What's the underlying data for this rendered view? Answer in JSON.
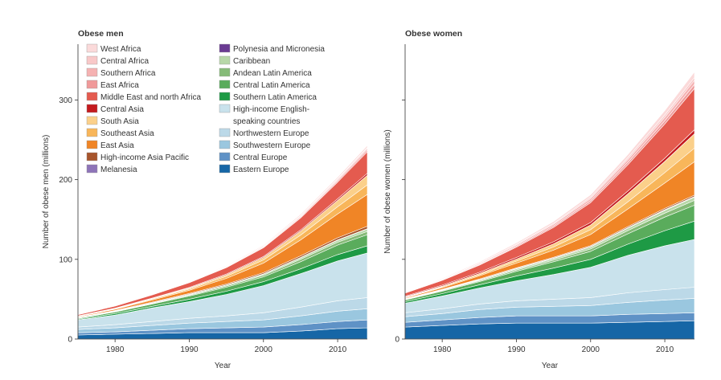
{
  "figure": {
    "legend": [
      {
        "label": "West Africa",
        "color": "#fbdada"
      },
      {
        "label": "Central Africa",
        "color": "#f8c8c8"
      },
      {
        "label": "Southern Africa",
        "color": "#f5b2b2"
      },
      {
        "label": "East Africa",
        "color": "#f09a9a"
      },
      {
        "label": "Middle East and north Africa",
        "color": "#e45b4f"
      },
      {
        "label": "Central Asia",
        "color": "#c41a1e"
      },
      {
        "label": "South Asia",
        "color": "#fbd08a"
      },
      {
        "label": "Southeast Asia",
        "color": "#f8b65a"
      },
      {
        "label": "East Asia",
        "color": "#f08526"
      },
      {
        "label": "High-income Asia Pacific",
        "color": "#a7552c"
      },
      {
        "label": "Melanesia",
        "color": "#8e74b8"
      },
      {
        "label": "Polynesia and Micronesia",
        "color": "#6a3b92"
      },
      {
        "label": "Caribbean",
        "color": "#b7d7a8"
      },
      {
        "label": "Andean Latin America",
        "color": "#86bb78"
      },
      {
        "label": "Central Latin America",
        "color": "#5aac5c"
      },
      {
        "label": "Southern Latin America",
        "color": "#1e9a45"
      },
      {
        "label": "High-income English-speaking countries",
        "label_lines": [
          "High-income English-",
          "speaking countries"
        ],
        "color": "#c9e2ec"
      },
      {
        "label": "Northwestern Europe",
        "color": "#bcd9e8"
      },
      {
        "label": "Southwestern Europe",
        "color": "#9ac7df"
      },
      {
        "label": "Central Europe",
        "color": "#5f92c6"
      },
      {
        "label": "Eastern Europe",
        "color": "#1666a6"
      }
    ]
  },
  "chart_data": [
    {
      "type": "area",
      "title": "Obese men",
      "xlabel": "Year",
      "ylabel": "Number of obese men (millions)",
      "x": [
        1975,
        1980,
        1985,
        1990,
        1995,
        2000,
        2005,
        2010,
        2014
      ],
      "xticks": [
        1980,
        1990,
        2000,
        2010
      ],
      "yticks": [
        0,
        100,
        200,
        300
      ],
      "ylim": [
        0,
        370
      ],
      "stacked": true,
      "series": [
        {
          "name": "Eastern Europe",
          "values": [
            5,
            6,
            7,
            8,
            8,
            8,
            10,
            13,
            14
          ]
        },
        {
          "name": "Central Europe",
          "values": [
            3,
            3,
            4,
            5,
            6,
            7,
            8,
            9,
            10
          ]
        },
        {
          "name": "Southwestern Europe",
          "values": [
            4,
            5,
            6,
            7,
            8,
            9,
            11,
            13,
            14
          ]
        },
        {
          "name": "Northwestern Europe",
          "values": [
            3,
            4,
            5,
            6,
            7,
            9,
            11,
            13,
            14
          ]
        },
        {
          "name": "High-income English-speaking countries",
          "values": [
            9,
            12,
            17,
            21,
            27,
            34,
            42,
            50,
            56
          ]
        },
        {
          "name": "Southern Latin America",
          "values": [
            1,
            2,
            2,
            3,
            4,
            5,
            6,
            8,
            9
          ]
        },
        {
          "name": "Central Latin America",
          "values": [
            1,
            2,
            3,
            4,
            5,
            6,
            9,
            12,
            14
          ]
        },
        {
          "name": "Andean Latin America",
          "values": [
            0.3,
            0.5,
            0.7,
            1,
            1.5,
            2,
            3,
            3.5,
            4
          ]
        },
        {
          "name": "Caribbean",
          "values": [
            0.3,
            0.5,
            0.7,
            1,
            1.2,
            1.5,
            2,
            2.5,
            3
          ]
        },
        {
          "name": "Polynesia and Micronesia",
          "values": [
            0.1,
            0.1,
            0.1,
            0.1,
            0.1,
            0.1,
            0.1,
            0.2,
            0.2
          ]
        },
        {
          "name": "Melanesia",
          "values": [
            0.1,
            0.1,
            0.1,
            0.1,
            0.1,
            0.2,
            0.2,
            0.3,
            0.3
          ]
        },
        {
          "name": "High-income Asia Pacific",
          "values": [
            0.5,
            0.7,
            0.8,
            1,
            1.2,
            1.5,
            2,
            2.5,
            3
          ]
        },
        {
          "name": "East Asia",
          "values": [
            0.8,
            1.5,
            2.5,
            4,
            7,
            12,
            20,
            30,
            40
          ]
        },
        {
          "name": "Southeast Asia",
          "values": [
            0.3,
            0.5,
            1,
            1.5,
            2.5,
            4,
            6,
            9,
            12
          ]
        },
        {
          "name": "South Asia",
          "values": [
            0.3,
            0.5,
            0.8,
            1.2,
            2,
            3,
            5,
            8,
            12
          ]
        },
        {
          "name": "Central Asia",
          "values": [
            0.3,
            0.4,
            0.6,
            0.8,
            1,
            1.2,
            1.5,
            2,
            2.5
          ]
        },
        {
          "name": "Middle East and north Africa",
          "values": [
            1.5,
            2.5,
            4,
            6,
            8,
            11,
            15,
            21,
            27
          ]
        },
        {
          "name": "East Africa",
          "values": [
            0.1,
            0.2,
            0.3,
            0.4,
            0.6,
            0.8,
            1.2,
            1.7,
            2.2
          ]
        },
        {
          "name": "Southern Africa",
          "values": [
            0.2,
            0.3,
            0.4,
            0.6,
            0.8,
            1,
            1.3,
            1.6,
            2
          ]
        },
        {
          "name": "Central Africa",
          "values": [
            0.1,
            0.1,
            0.2,
            0.3,
            0.4,
            0.5,
            0.7,
            0.9,
            1.2
          ]
        },
        {
          "name": "West Africa",
          "values": [
            0.2,
            0.3,
            0.4,
            0.6,
            0.8,
            1.1,
            1.5,
            2,
            2.6
          ]
        }
      ]
    },
    {
      "type": "area",
      "title": "Obese women",
      "xlabel": "Year",
      "ylabel": "Number of obese women (millions)",
      "x": [
        1975,
        1980,
        1985,
        1990,
        1995,
        2000,
        2005,
        2010,
        2014
      ],
      "xticks": [
        1980,
        1990,
        2000,
        2010
      ],
      "yticks": [
        0,
        100,
        200,
        300
      ],
      "ylim": [
        0,
        370
      ],
      "stacked": true,
      "series": [
        {
          "name": "Eastern Europe",
          "values": [
            15,
            17,
            19,
            20,
            20,
            20,
            21,
            22,
            23
          ]
        },
        {
          "name": "Central Europe",
          "values": [
            6,
            7,
            8,
            9,
            9,
            9,
            10,
            10,
            10
          ]
        },
        {
          "name": "Southwestern Europe",
          "values": [
            7,
            8,
            10,
            11,
            12,
            13,
            15,
            17,
            18
          ]
        },
        {
          "name": "Northwestern Europe",
          "values": [
            5,
            6,
            7,
            8,
            9,
            10,
            12,
            13,
            14
          ]
        },
        {
          "name": "High-income English-speaking countries",
          "values": [
            12,
            16,
            20,
            25,
            31,
            38,
            47,
            55,
            60
          ]
        },
        {
          "name": "Southern Latin America",
          "values": [
            2,
            3,
            4,
            6,
            8,
            10,
            14,
            19,
            23
          ]
        },
        {
          "name": "Central Latin America",
          "values": [
            2,
            3,
            4,
            6,
            8,
            10,
            13,
            17,
            20
          ]
        },
        {
          "name": "Andean Latin America",
          "values": [
            0.5,
            0.8,
            1.2,
            1.6,
            2,
            3,
            4,
            5,
            6
          ]
        },
        {
          "name": "Caribbean",
          "values": [
            0.5,
            0.8,
            1,
            1.5,
            2,
            2.5,
            3,
            3.5,
            4
          ]
        },
        {
          "name": "Polynesia and Micronesia",
          "values": [
            0.1,
            0.1,
            0.1,
            0.2,
            0.2,
            0.2,
            0.2,
            0.3,
            0.3
          ]
        },
        {
          "name": "Melanesia",
          "values": [
            0.1,
            0.1,
            0.2,
            0.2,
            0.3,
            0.3,
            0.4,
            0.5,
            0.5
          ]
        },
        {
          "name": "High-income Asia Pacific",
          "values": [
            0.5,
            0.6,
            0.7,
            0.8,
            1,
            1.2,
            1.4,
            1.6,
            1.8
          ]
        },
        {
          "name": "East Asia",
          "values": [
            1,
            2,
            4,
            6,
            9,
            14,
            22,
            32,
            42
          ]
        },
        {
          "name": "Southeast Asia",
          "values": [
            0.5,
            1,
            1.5,
            2.5,
            4,
            6,
            9,
            13,
            17
          ]
        },
        {
          "name": "South Asia",
          "values": [
            0.5,
            1,
            1.5,
            2.5,
            4,
            6,
            10,
            14,
            18
          ]
        },
        {
          "name": "Central Asia",
          "values": [
            1,
            1.2,
            1.5,
            2,
            2.5,
            3,
            3.5,
            4,
            5
          ]
        },
        {
          "name": "Middle East and north Africa",
          "values": [
            4,
            6,
            9,
            13,
            18,
            25,
            33,
            43,
            52
          ]
        },
        {
          "name": "East Africa",
          "values": [
            0.3,
            0.5,
            0.8,
            1.2,
            1.7,
            2.3,
            3,
            4,
            5
          ]
        },
        {
          "name": "Southern Africa",
          "values": [
            0.5,
            0.8,
            1.2,
            1.6,
            2.2,
            2.8,
            3.5,
            4.3,
            5
          ]
        },
        {
          "name": "Central Africa",
          "values": [
            0.3,
            0.5,
            0.7,
            1,
            1.3,
            1.8,
            2.3,
            3,
            3.6
          ]
        },
        {
          "name": "West Africa",
          "values": [
            0.5,
            0.8,
            1.2,
            1.7,
            2.3,
            3,
            4,
            5.5,
            7
          ]
        }
      ]
    }
  ]
}
